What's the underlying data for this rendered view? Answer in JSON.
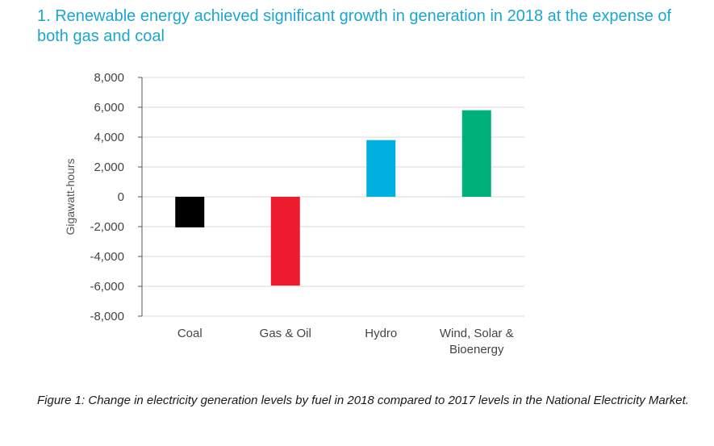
{
  "header": {
    "title": "1. Renewable energy achieved significant growth in generation in 2018 at the expense of both gas and coal"
  },
  "caption": "Figure 1: Change in electricity generation levels by fuel in 2018 compared to 2017 levels in the National Electricity Market.",
  "chart_data": {
    "type": "bar",
    "title": "1. Renewable energy achieved significant growth in generation in 2018 at the expense of both gas and coal",
    "xlabel": "",
    "ylabel": "Gigawatt-hours",
    "categories": [
      "Coal",
      "Gas & Oil",
      "Hydro",
      "Wind, Solar & Bioenergy"
    ],
    "category_lines": [
      [
        "Coal"
      ],
      [
        "Gas & Oil"
      ],
      [
        "Hydro"
      ],
      [
        "Wind, Solar &",
        "Bioenergy"
      ]
    ],
    "values": [
      -2050,
      -5950,
      3800,
      5800
    ],
    "colors": [
      "#000000",
      "#ec1c2e",
      "#00b0e0",
      "#00b07a"
    ],
    "ylim": [
      -8000,
      8000
    ],
    "yticks": [
      8000,
      6000,
      4000,
      2000,
      0,
      -2000,
      -4000,
      -6000,
      -8000
    ],
    "ytick_labels": [
      "8,000",
      "6,000",
      "4,000",
      "2,000",
      "0",
      "-2,000",
      "-4,000",
      "-6,000",
      "-8,000"
    ],
    "grid": true,
    "legend": "none"
  }
}
